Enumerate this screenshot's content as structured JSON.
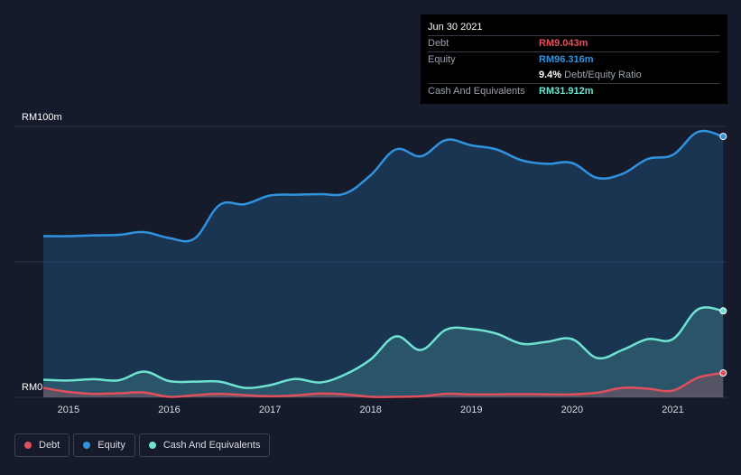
{
  "tooltip": {
    "date": "Jun 30 2021",
    "debt_label": "Debt",
    "debt_value": "RM9.043m",
    "equity_label": "Equity",
    "equity_value": "RM96.316m",
    "ratio_value": "9.4%",
    "ratio_label": "Debt/Equity Ratio",
    "cash_label": "Cash And Equivalents",
    "cash_value": "RM31.912m"
  },
  "legend": {
    "debt": "Debt",
    "equity": "Equity",
    "cash": "Cash And Equivalents"
  },
  "colors": {
    "background": "#151b2b",
    "debt": "#e0505c",
    "equity": "#2f93e0",
    "cash": "#6fe3d1"
  },
  "chart_data": {
    "type": "area",
    "y_top_label": "RM100m",
    "y_bottom_label": "RM0",
    "ylim": [
      0,
      100
    ],
    "xlim": [
      2014.75,
      2021.5
    ],
    "x_ticks": [
      "2015",
      "2016",
      "2017",
      "2018",
      "2019",
      "2020",
      "2021"
    ],
    "series": [
      {
        "name": "Equity",
        "x": [
          2014.75,
          2015.0,
          2015.25,
          2015.5,
          2015.75,
          2016.0,
          2016.25,
          2016.5,
          2016.75,
          2017.0,
          2017.25,
          2017.5,
          2017.75,
          2018.0,
          2018.25,
          2018.5,
          2018.75,
          2019.0,
          2019.25,
          2019.5,
          2019.75,
          2020.0,
          2020.25,
          2020.5,
          2020.75,
          2021.0,
          2021.25,
          2021.5
        ],
        "values": [
          59.5,
          59.5,
          59.8,
          60,
          61,
          58.8,
          58.6,
          71,
          71.3,
          74.5,
          74.8,
          75,
          75.3,
          82,
          91.5,
          89,
          95,
          93,
          91.5,
          87.5,
          86.2,
          86.5,
          81,
          82.5,
          88,
          89.5,
          98,
          96.3
        ]
      },
      {
        "name": "Cash And Equivalents",
        "x": [
          2014.75,
          2015.0,
          2015.25,
          2015.5,
          2015.75,
          2016.0,
          2016.25,
          2016.5,
          2016.75,
          2017.0,
          2017.25,
          2017.5,
          2017.75,
          2018.0,
          2018.25,
          2018.5,
          2018.75,
          2019.0,
          2019.25,
          2019.5,
          2019.75,
          2020.0,
          2020.25,
          2020.5,
          2020.75,
          2021.0,
          2021.25,
          2021.5
        ],
        "values": [
          6.5,
          6.2,
          6.7,
          6.3,
          9.5,
          6.0,
          5.8,
          5.8,
          3.5,
          4.5,
          6.8,
          5.5,
          8.5,
          14,
          22.5,
          17.5,
          25,
          25.2,
          23.5,
          19.8,
          20.5,
          21.5,
          14.5,
          17.5,
          21.5,
          21.5,
          32.5,
          31.9
        ]
      },
      {
        "name": "Debt",
        "x": [
          2014.75,
          2015.0,
          2015.25,
          2015.5,
          2015.75,
          2016.0,
          2016.25,
          2016.5,
          2016.75,
          2017.0,
          2017.25,
          2017.5,
          2017.75,
          2018.0,
          2018.25,
          2018.5,
          2018.75,
          2019.0,
          2019.25,
          2019.5,
          2019.75,
          2020.0,
          2020.25,
          2020.5,
          2020.75,
          2021.0,
          2021.25,
          2021.5
        ],
        "values": [
          3.5,
          2.0,
          1.3,
          1.5,
          1.8,
          0.2,
          0.8,
          1.3,
          0.8,
          0.4,
          0.7,
          1.4,
          1.1,
          0.2,
          0.2,
          0.4,
          1.3,
          1.1,
          1.1,
          1.2,
          1.1,
          1.1,
          1.7,
          3.5,
          3.2,
          2.5,
          7.3,
          9.0
        ]
      }
    ]
  }
}
